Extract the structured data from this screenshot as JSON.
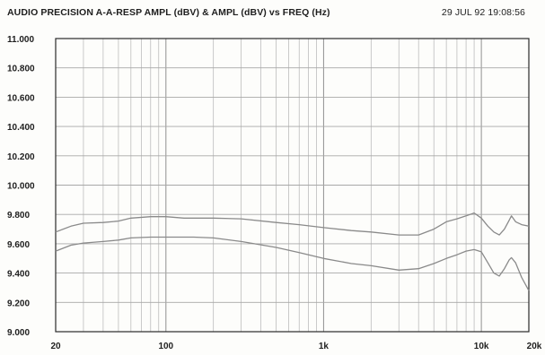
{
  "header": {
    "title": "AUDIO PRECISION A-A-RESP AMPL (dBV) & AMPL (dBV) vs FREQ (Hz)",
    "timestamp": "29 JUL 92 19:08:56"
  },
  "chart_data": {
    "type": "line",
    "title": "AUDIO PRECISION A-A-RESP AMPL (dBV) & AMPL (dBV) vs FREQ (Hz)",
    "xlabel": "",
    "ylabel": "",
    "x_scale": "log",
    "xlim": [
      20,
      20000
    ],
    "ylim": [
      9.0,
      11.0
    ],
    "grid": true,
    "x_ticks": [
      {
        "value": 20,
        "label": "20"
      },
      {
        "value": 100,
        "label": "100"
      },
      {
        "value": 1000,
        "label": "1k"
      },
      {
        "value": 10000,
        "label": "10k"
      },
      {
        "value": 20000,
        "label": "20k"
      }
    ],
    "y_ticks": [
      {
        "value": 11.0,
        "label": "11.000"
      },
      {
        "value": 10.8,
        "label": "10.800"
      },
      {
        "value": 10.6,
        "label": "10.600"
      },
      {
        "value": 10.4,
        "label": "10.400"
      },
      {
        "value": 10.2,
        "label": "10.200"
      },
      {
        "value": 10.0,
        "label": "10.000"
      },
      {
        "value": 9.8,
        "label": "9.800"
      },
      {
        "value": 9.6,
        "label": "9.600"
      },
      {
        "value": 9.4,
        "label": "9.400"
      },
      {
        "value": 9.2,
        "label": "9.200"
      },
      {
        "value": 9.0,
        "label": "9.000"
      }
    ],
    "series": [
      {
        "color": "#8a8a8a",
        "points": [
          [
            20,
            9.68
          ],
          [
            25,
            9.72
          ],
          [
            30,
            9.74
          ],
          [
            40,
            9.745
          ],
          [
            50,
            9.755
          ],
          [
            60,
            9.775
          ],
          [
            80,
            9.785
          ],
          [
            100,
            9.785
          ],
          [
            130,
            9.775
          ],
          [
            200,
            9.775
          ],
          [
            300,
            9.77
          ],
          [
            500,
            9.745
          ],
          [
            700,
            9.73
          ],
          [
            1000,
            9.71
          ],
          [
            1500,
            9.69
          ],
          [
            2000,
            9.68
          ],
          [
            3000,
            9.66
          ],
          [
            4000,
            9.66
          ],
          [
            5000,
            9.7
          ],
          [
            6000,
            9.75
          ],
          [
            7000,
            9.77
          ],
          [
            8000,
            9.79
          ],
          [
            9000,
            9.81
          ],
          [
            10000,
            9.775
          ],
          [
            11000,
            9.72
          ],
          [
            12000,
            9.68
          ],
          [
            13000,
            9.66
          ],
          [
            14000,
            9.7
          ],
          [
            15000,
            9.76
          ],
          [
            15500,
            9.79
          ],
          [
            16500,
            9.75
          ],
          [
            18000,
            9.73
          ],
          [
            20000,
            9.72
          ]
        ]
      },
      {
        "color": "#8a8a8a",
        "points": [
          [
            20,
            9.55
          ],
          [
            25,
            9.59
          ],
          [
            30,
            9.605
          ],
          [
            40,
            9.615
          ],
          [
            50,
            9.625
          ],
          [
            60,
            9.64
          ],
          [
            80,
            9.645
          ],
          [
            100,
            9.645
          ],
          [
            150,
            9.645
          ],
          [
            200,
            9.64
          ],
          [
            300,
            9.615
          ],
          [
            500,
            9.575
          ],
          [
            700,
            9.54
          ],
          [
            1000,
            9.5
          ],
          [
            1500,
            9.465
          ],
          [
            2000,
            9.45
          ],
          [
            3000,
            9.42
          ],
          [
            4000,
            9.43
          ],
          [
            5000,
            9.465
          ],
          [
            6000,
            9.5
          ],
          [
            7000,
            9.525
          ],
          [
            8000,
            9.55
          ],
          [
            9000,
            9.56
          ],
          [
            10000,
            9.545
          ],
          [
            11000,
            9.47
          ],
          [
            12000,
            9.4
          ],
          [
            13000,
            9.38
          ],
          [
            14000,
            9.43
          ],
          [
            15000,
            9.49
          ],
          [
            15500,
            9.505
          ],
          [
            16500,
            9.47
          ],
          [
            18000,
            9.37
          ],
          [
            20000,
            9.28
          ]
        ]
      }
    ]
  }
}
